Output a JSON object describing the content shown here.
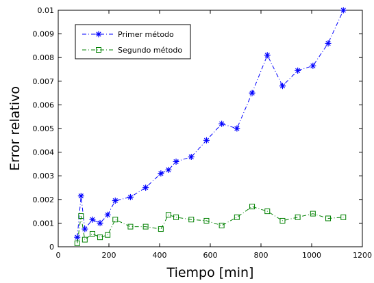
{
  "chart_data": {
    "type": "line",
    "xlabel": "Tiempo [min]",
    "ylabel": "Error relativo",
    "xlim": [
      0,
      1200
    ],
    "ylim": [
      0,
      0.01
    ],
    "xticks": [
      0,
      200,
      400,
      600,
      800,
      1000,
      1200
    ],
    "xtick_labels": [
      "0",
      "200",
      "400",
      "600",
      "800",
      "1000",
      "1200"
    ],
    "yticks": [
      0,
      0.001,
      0.002,
      0.003,
      0.004,
      0.005,
      0.006,
      0.007,
      0.008,
      0.009,
      0.01
    ],
    "ytick_labels": [
      "0",
      "0.001",
      "0.002",
      "0.003",
      "0.004",
      "0.005",
      "0.006",
      "0.007",
      "0.008",
      "0.009",
      "0.01"
    ],
    "grid": false,
    "legend_position": "top-left",
    "series": [
      {
        "name": "Primer método",
        "color": "#0000ff",
        "line_style": "dash-dot",
        "marker": "asterisk",
        "x": [
          75,
          90,
          105,
          135,
          165,
          195,
          225,
          285,
          345,
          405,
          435,
          465,
          525,
          585,
          645,
          705,
          765,
          825,
          885,
          945,
          1005,
          1065,
          1125
        ],
        "y": [
          0.0004,
          0.00215,
          0.00075,
          0.00115,
          0.001,
          0.00135,
          0.00195,
          0.0021,
          0.0025,
          0.0031,
          0.00325,
          0.0036,
          0.0038,
          0.0045,
          0.0052,
          0.005,
          0.0065,
          0.0081,
          0.0068,
          0.00745,
          0.00765,
          0.0086,
          0.01
        ]
      },
      {
        "name": "Segundo método",
        "color": "#008000",
        "line_style": "dash-dot",
        "marker": "square",
        "x": [
          75,
          90,
          105,
          135,
          165,
          195,
          225,
          285,
          345,
          405,
          435,
          465,
          525,
          585,
          645,
          705,
          765,
          825,
          885,
          945,
          1005,
          1065,
          1125
        ],
        "y": [
          0.00015,
          0.0013,
          0.0003,
          0.00055,
          0.0004,
          0.0005,
          0.00115,
          0.00085,
          0.00085,
          0.00075,
          0.00135,
          0.00125,
          0.00115,
          0.0011,
          0.0009,
          0.00125,
          0.0017,
          0.0015,
          0.0011,
          0.00125,
          0.0014,
          0.0012,
          0.00125
        ]
      }
    ]
  }
}
